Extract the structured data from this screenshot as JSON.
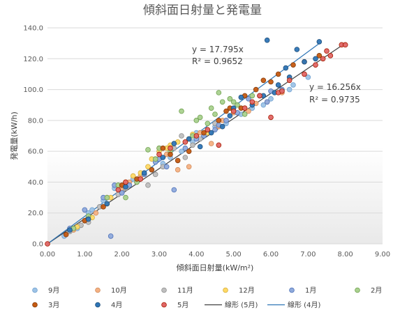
{
  "chart_data": {
    "type": "scatter",
    "title": "傾斜面日射量と発電量",
    "xlabel": "傾斜面日射量(kW/m²)",
    "ylabel": "発電量(kW/h)",
    "xlim": [
      0,
      9
    ],
    "ylim": [
      0,
      140
    ],
    "x_ticks": [
      "0.00",
      "1.00",
      "2.00",
      "3.00",
      "4.00",
      "5.00",
      "6.00",
      "7.00",
      "8.00",
      "9.00"
    ],
    "y_ticks": [
      "0.0",
      "20.0",
      "40.0",
      "60.0",
      "80.0",
      "100.0",
      "120.0",
      "140.0"
    ],
    "grid": "horizontal",
    "legend_position": "bottom",
    "series": [
      {
        "name": "9月",
        "color": "#9DC3E6",
        "stroke": "#6FA0D0",
        "points": [
          [
            0.45,
            5
          ],
          [
            0.8,
            10
          ],
          [
            1.1,
            20
          ],
          [
            1.2,
            22
          ],
          [
            1.5,
            28
          ],
          [
            1.8,
            36
          ],
          [
            2.3,
            42
          ],
          [
            2.8,
            48
          ],
          [
            3.1,
            52
          ],
          [
            3.3,
            56
          ],
          [
            3.6,
            60
          ],
          [
            3.9,
            66
          ],
          [
            4.2,
            70
          ],
          [
            4.5,
            76
          ],
          [
            4.8,
            78
          ],
          [
            5.2,
            84
          ],
          [
            5.5,
            88
          ],
          [
            6.0,
            94
          ],
          [
            6.5,
            100
          ],
          [
            7.0,
            108
          ],
          [
            6.6,
            103
          ],
          [
            5.8,
            90
          ],
          [
            3.0,
            60
          ],
          [
            2.0,
            35
          ],
          [
            1.0,
            15
          ],
          [
            4.0,
            72
          ],
          [
            2.6,
            45
          ]
        ]
      },
      {
        "name": "10月",
        "color": "#F4B183",
        "stroke": "#D08B5B",
        "points": [
          [
            0.7,
            9
          ],
          [
            1.3,
            20
          ],
          [
            2.0,
            36
          ],
          [
            2.5,
            44
          ],
          [
            2.9,
            55
          ],
          [
            3.2,
            58
          ],
          [
            3.5,
            48
          ],
          [
            3.8,
            50
          ],
          [
            4.1,
            72
          ],
          [
            4.4,
            65
          ],
          [
            4.7,
            80
          ],
          [
            5.0,
            85
          ],
          [
            5.3,
            88
          ],
          [
            5.6,
            91
          ],
          [
            5.9,
            92
          ],
          [
            6.3,
            98
          ],
          [
            3.0,
            62
          ],
          [
            2.2,
            40
          ],
          [
            1.6,
            30
          ],
          [
            4.6,
            76
          ],
          [
            5.4,
            86
          ]
        ]
      },
      {
        "name": "11月",
        "color": "#BFBFBF",
        "stroke": "#8F8F8F",
        "points": [
          [
            0.6,
            8
          ],
          [
            0.9,
            12
          ],
          [
            1.4,
            24
          ],
          [
            1.9,
            32
          ],
          [
            2.4,
            40
          ],
          [
            2.7,
            38
          ],
          [
            3.1,
            50
          ],
          [
            3.4,
            62
          ],
          [
            3.6,
            70
          ],
          [
            3.9,
            64
          ],
          [
            4.1,
            68
          ],
          [
            4.3,
            74
          ],
          [
            2.9,
            45
          ],
          [
            2.1,
            36
          ],
          [
            1.1,
            14
          ],
          [
            3.7,
            56
          ],
          [
            4.5,
            78
          ]
        ]
      },
      {
        "name": "12月",
        "color": "#FFD966",
        "stroke": "#D4AE38",
        "points": [
          [
            0.8,
            11
          ],
          [
            1.2,
            17
          ],
          [
            1.6,
            26
          ],
          [
            2.1,
            40
          ],
          [
            2.3,
            44
          ],
          [
            2.5,
            46
          ],
          [
            2.8,
            55
          ],
          [
            3.0,
            60
          ],
          [
            3.2,
            62
          ],
          [
            3.5,
            66
          ],
          [
            3.8,
            68
          ],
          [
            4.0,
            70
          ],
          [
            4.3,
            72
          ],
          [
            1.7,
            30
          ],
          [
            2.7,
            50
          ],
          [
            3.3,
            64
          ],
          [
            3.9,
            71
          ]
        ]
      },
      {
        "name": "1月",
        "color": "#8FAADC",
        "stroke": "#4F72B8",
        "points": [
          [
            0.6,
            10
          ],
          [
            1.0,
            22
          ],
          [
            1.5,
            30
          ],
          [
            1.7,
            5
          ],
          [
            1.8,
            38
          ],
          [
            2.2,
            38
          ],
          [
            2.6,
            45
          ],
          [
            2.9,
            53
          ],
          [
            3.2,
            50
          ],
          [
            3.4,
            35
          ],
          [
            3.7,
            62
          ],
          [
            4.0,
            68
          ],
          [
            4.2,
            70
          ],
          [
            4.5,
            74
          ],
          [
            4.8,
            80
          ],
          [
            5.1,
            85
          ],
          [
            5.4,
            94
          ],
          [
            5.7,
            96
          ],
          [
            6.0,
            99
          ],
          [
            6.3,
            100
          ],
          [
            3.0,
            55
          ],
          [
            2.0,
            33
          ],
          [
            4.6,
            77
          ],
          [
            5.9,
            92
          ]
        ]
      },
      {
        "name": "2月",
        "color": "#A9D18E",
        "stroke": "#70A050",
        "points": [
          [
            0.7,
            10
          ],
          [
            1.1,
            18
          ],
          [
            1.6,
            30
          ],
          [
            2.1,
            30
          ],
          [
            2.4,
            40
          ],
          [
            2.7,
            61
          ],
          [
            3.0,
            62
          ],
          [
            3.3,
            60
          ],
          [
            3.6,
            86
          ],
          [
            3.9,
            70
          ],
          [
            4.1,
            82
          ],
          [
            4.3,
            78
          ],
          [
            4.5,
            84
          ],
          [
            4.6,
            98
          ],
          [
            4.7,
            92
          ],
          [
            4.9,
            94
          ],
          [
            5.1,
            90
          ],
          [
            5.3,
            84
          ],
          [
            5.5,
            96
          ],
          [
            2.9,
            55
          ],
          [
            1.9,
            38
          ],
          [
            4.0,
            80
          ],
          [
            4.4,
            88
          ],
          [
            5.0,
            92
          ]
        ]
      },
      {
        "name": "3月",
        "color": "#C55A11",
        "stroke": "#843C0C",
        "points": [
          [
            0.5,
            6
          ],
          [
            1.0,
            15
          ],
          [
            1.5,
            24
          ],
          [
            2.0,
            38
          ],
          [
            2.4,
            42
          ],
          [
            2.8,
            48
          ],
          [
            3.1,
            62
          ],
          [
            3.5,
            54
          ],
          [
            3.8,
            60
          ],
          [
            4.2,
            72
          ],
          [
            4.6,
            80
          ],
          [
            4.9,
            88
          ],
          [
            5.2,
            88
          ],
          [
            5.6,
            100
          ],
          [
            5.8,
            106
          ],
          [
            6.2,
            110
          ],
          [
            6.6,
            116
          ],
          [
            6.9,
            118
          ],
          [
            7.3,
            122
          ],
          [
            5.3,
            96
          ],
          [
            3.3,
            58
          ],
          [
            4.8,
            86
          ],
          [
            6.0,
            105
          ]
        ]
      },
      {
        "name": "4月",
        "color": "#2E75B6",
        "stroke": "#1F4E79",
        "points": [
          [
            0.6,
            9
          ],
          [
            1.1,
            16
          ],
          [
            1.6,
            26
          ],
          [
            2.1,
            37
          ],
          [
            2.6,
            46
          ],
          [
            3.1,
            56
          ],
          [
            3.4,
            65
          ],
          [
            3.8,
            68
          ],
          [
            4.1,
            63
          ],
          [
            4.4,
            72
          ],
          [
            4.7,
            76
          ],
          [
            5.0,
            88
          ],
          [
            5.2,
            95
          ],
          [
            5.5,
            90
          ],
          [
            5.8,
            96
          ],
          [
            5.9,
            132
          ],
          [
            6.2,
            103
          ],
          [
            6.5,
            108
          ],
          [
            6.7,
            126
          ],
          [
            6.9,
            118
          ],
          [
            7.2,
            120
          ],
          [
            7.3,
            131
          ],
          [
            6.1,
            98
          ],
          [
            4.9,
            83
          ],
          [
            6.4,
            114
          ]
        ]
      },
      {
        "name": "5月",
        "color": "#E06666",
        "stroke": "#A61C00",
        "points": [
          [
            0,
            0
          ],
          [
            1.9,
            35
          ],
          [
            2.1,
            40
          ],
          [
            2.5,
            42
          ],
          [
            3.0,
            58
          ],
          [
            3.3,
            62
          ],
          [
            3.7,
            66
          ],
          [
            4.0,
            70
          ],
          [
            4.3,
            74
          ],
          [
            4.6,
            64
          ],
          [
            5.0,
            86
          ],
          [
            5.3,
            88
          ],
          [
            5.7,
            96
          ],
          [
            6.0,
            82
          ],
          [
            6.2,
            98
          ],
          [
            6.5,
            106
          ],
          [
            6.9,
            110
          ],
          [
            7.2,
            116
          ],
          [
            7.4,
            120
          ],
          [
            7.5,
            125
          ],
          [
            7.6,
            122
          ],
          [
            7.9,
            129
          ],
          [
            8.0,
            129
          ],
          [
            6.3,
            99
          ],
          [
            5.5,
            92
          ]
        ]
      }
    ],
    "trendlines": [
      {
        "name": "線形 (5月)",
        "color": "#404040",
        "slope": 16.256,
        "x_end": 8.0,
        "equation": "y = 16.256x",
        "r2": "R² = 0.9735"
      },
      {
        "name": "線形 (4月)",
        "color": "#2E75B6",
        "slope": 17.795,
        "x_end": 7.3,
        "equation": "y = 17.795x",
        "r2": "R² = 0.9652"
      }
    ]
  }
}
